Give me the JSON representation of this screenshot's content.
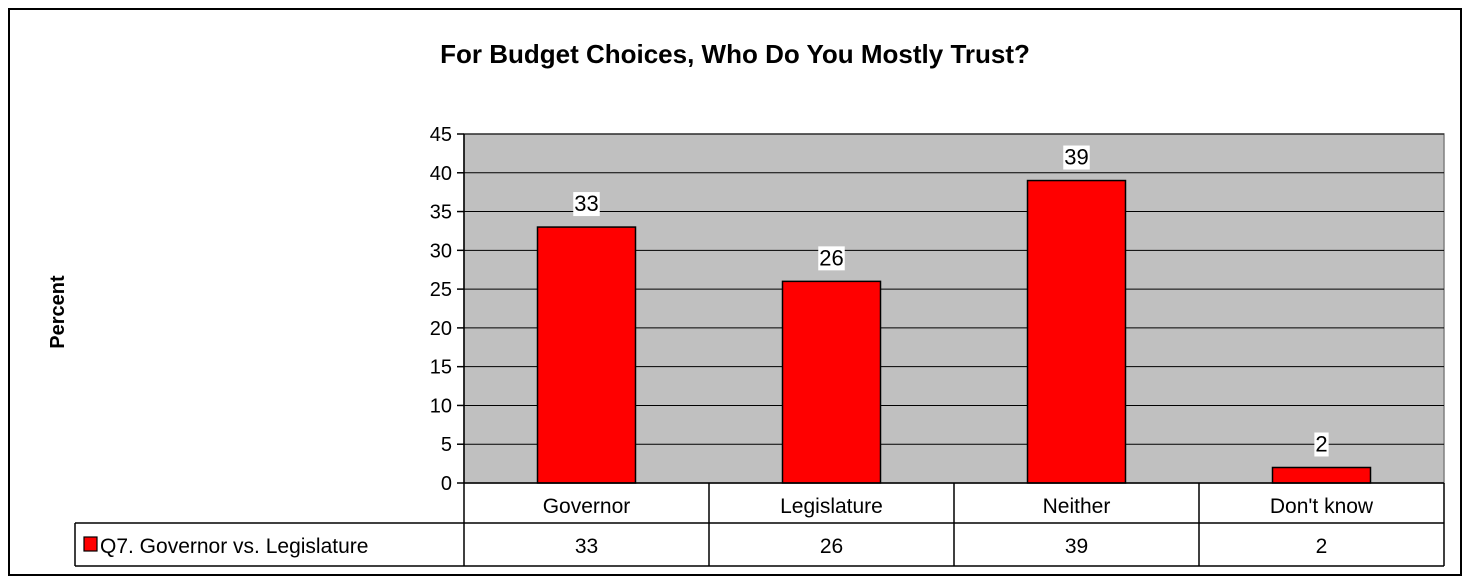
{
  "chart_data": {
    "type": "bar",
    "title": "For Budget Choices, Who Do You Mostly Trust?",
    "xlabel": "",
    "ylabel": "Percent",
    "categories": [
      "Governor",
      "Legislature",
      "Neither",
      "Don't know"
    ],
    "series": [
      {
        "name": "Q7. Governor vs. Legislature",
        "values": [
          33,
          26,
          39,
          2
        ]
      }
    ],
    "ylim": [
      0,
      45
    ],
    "yticks": [
      0,
      5,
      10,
      15,
      20,
      25,
      30,
      35,
      40,
      45
    ],
    "grid": true,
    "data_table": true,
    "legend": "in-table-left"
  },
  "colors": {
    "bar": "#ff0000",
    "plot_background": "#c0c0c0",
    "border": "#000000"
  }
}
